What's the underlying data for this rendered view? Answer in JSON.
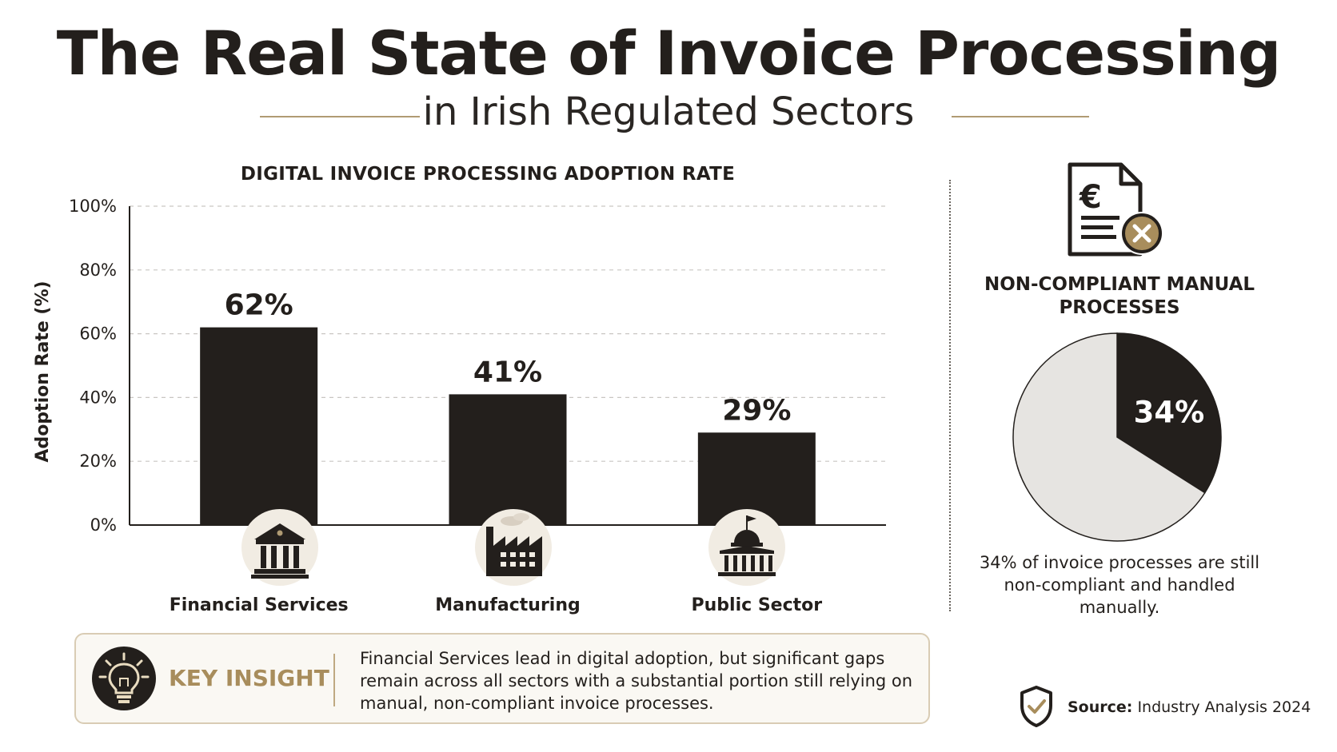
{
  "header": {
    "title": "The Real State of Invoice Processing",
    "subtitle": "in Irish Regulated Sectors"
  },
  "colors": {
    "dark": "#231f1c",
    "accent": "#b09b73",
    "icon_bg": "#f1ece3",
    "pie_light": "#e6e4e1"
  },
  "chart_data": [
    {
      "type": "bar",
      "title": "DIGITAL INVOICE PROCESSING ADOPTION RATE",
      "ylabel": "Adoption Rate (%)",
      "xlabel": "",
      "categories": [
        "Financial Services",
        "Manufacturing",
        "Public Sector"
      ],
      "values": [
        62,
        41,
        29
      ],
      "value_labels": [
        "62%",
        "41%",
        "29%"
      ],
      "category_icons": [
        "bank-icon",
        "factory-icon",
        "government-building-icon"
      ],
      "ylim": [
        0,
        100
      ],
      "yticks": [
        0,
        20,
        40,
        60,
        80,
        100
      ],
      "ytick_labels": [
        "0%",
        "20%",
        "40%",
        "60%",
        "80%",
        "100%"
      ],
      "grid": true,
      "legend": "none"
    },
    {
      "type": "pie",
      "title": "NON-COMPLIANT MANUAL PROCESSES",
      "slices": [
        {
          "value": 34,
          "label": "34%",
          "color": "#231f1c"
        },
        {
          "value": 66,
          "label": "",
          "color": "#e6e4e1"
        }
      ],
      "caption": "34% of invoice processes are still non-compliant and handled manually.",
      "icon": "euro-invoice-rejected-icon"
    }
  ],
  "insight": {
    "label": "KEY INSIGHT",
    "text": "Financial Services lead in digital adoption, but significant gaps remain across all sectors with a substantial portion still relying on manual, non-compliant invoice processes.",
    "icon": "lightbulb-icon"
  },
  "source": {
    "label": "Source:",
    "value": "Industry Analysis 2024",
    "icon": "shield-check-icon"
  }
}
